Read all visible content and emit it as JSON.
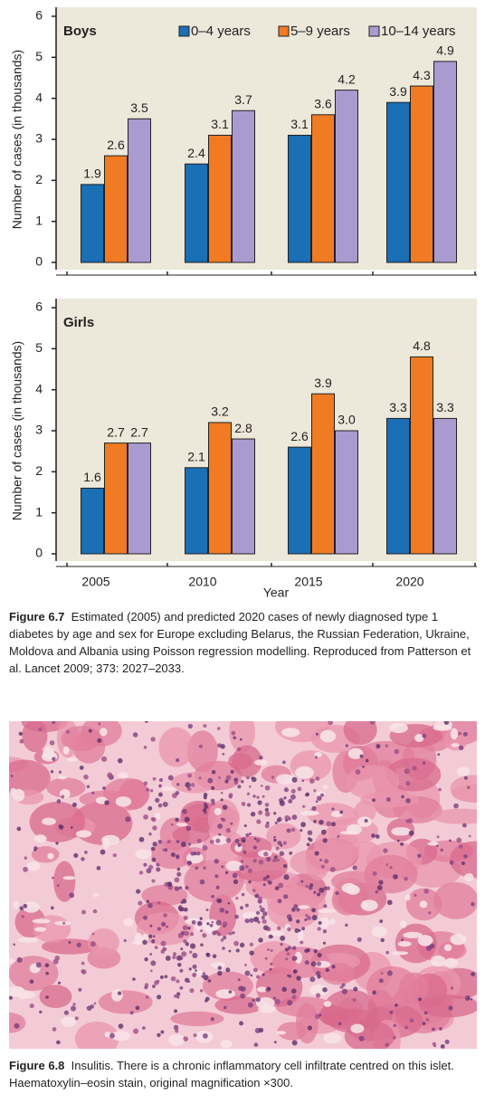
{
  "chart_data": [
    {
      "type": "bar",
      "title": "Boys",
      "y_label": "Number of cases (in thousands)",
      "ylim": [
        0,
        6
      ],
      "yticks": [
        0,
        1,
        2,
        3,
        4,
        5,
        6
      ],
      "legend": true,
      "series": [
        {
          "name": "0–4 years",
          "color": "#1a6fb5",
          "values": [
            1.9,
            2.4,
            3.1,
            3.9
          ]
        },
        {
          "name": "5–9 years",
          "color": "#f07b22",
          "values": [
            2.6,
            3.1,
            3.6,
            4.3
          ]
        },
        {
          "name": "10–14 years",
          "color": "#a99bd0",
          "values": [
            3.5,
            3.7,
            4.2,
            4.9
          ]
        }
      ]
    },
    {
      "type": "bar",
      "title": "Girls",
      "y_label": "Number of cases (in thousands)",
      "x_label": "Year",
      "categories": [
        "2005",
        "2010",
        "2015",
        "2020"
      ],
      "ylim": [
        0,
        6
      ],
      "yticks": [
        0,
        1,
        2,
        3,
        4,
        5,
        6
      ],
      "series": [
        {
          "color": "#1a6fb5",
          "values": [
            1.6,
            2.1,
            2.6,
            3.3
          ]
        },
        {
          "color": "#f07b22",
          "values": [
            2.7,
            3.2,
            3.9,
            4.8
          ]
        },
        {
          "color": "#a99bd0",
          "values": [
            2.7,
            2.8,
            3.0,
            3.3
          ],
          "value_labels": [
            "2.7",
            "2.8",
            "3.0",
            "3.3"
          ]
        }
      ]
    }
  ],
  "figure_6_7": {
    "label": "Figure 6.7",
    "caption": "Estimated (2005) and predicted 2020 cases of newly diagnosed type 1 diabetes by age and sex for Europe excluding Belarus, the Russian Federation, Ukraine, Moldova and Albania using Poisson regression modelling. Reproduced from Patterson et al. Lancet 2009; 373: 2027–2033."
  },
  "figure_6_8": {
    "label": "Figure 6.8",
    "caption": "Insulitis. There is a chronic inflammatory cell infiltrate centred on this islet. Haematoxylin–eosin stain, original magnification ×300."
  }
}
